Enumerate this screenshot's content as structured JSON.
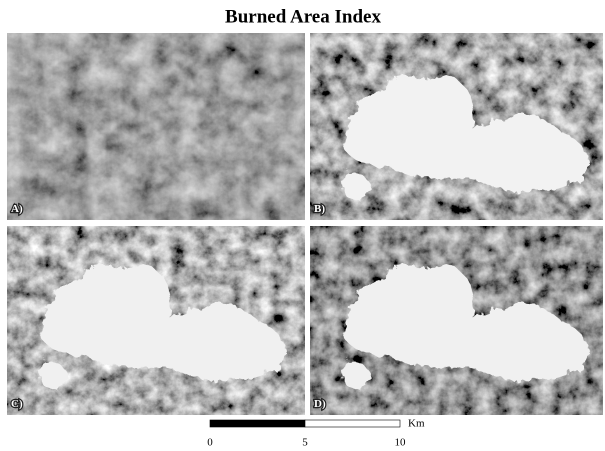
{
  "title": "Burned Area Index",
  "panels": [
    {
      "label": "A)"
    },
    {
      "label": "B)"
    },
    {
      "label": "C)"
    },
    {
      "label": "D)"
    }
  ],
  "scale_bar": {
    "ticks": [
      0,
      5,
      10
    ],
    "unit": "Km"
  }
}
